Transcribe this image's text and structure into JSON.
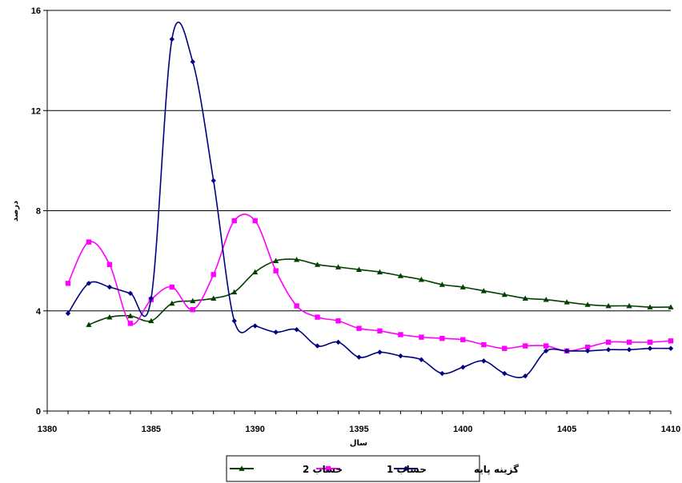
{
  "chart_data": {
    "type": "line",
    "xlabel": "سال",
    "ylabel": "درصد",
    "xlim": [
      1380,
      1410
    ],
    "ylim": [
      0,
      16
    ],
    "xticks": [
      1380,
      1385,
      1390,
      1395,
      1400,
      1405,
      1410
    ],
    "yticks": [
      0,
      4,
      8,
      12,
      16
    ],
    "grid": "horizontal",
    "legend_position": "bottom",
    "series": [
      {
        "name": "گزینه پایه",
        "color": "#000080",
        "marker": "diamond",
        "x": [
          1381,
          1382,
          1383,
          1384,
          1385,
          1386,
          1387,
          1388,
          1389,
          1390,
          1391,
          1392,
          1393,
          1394,
          1395,
          1396,
          1397,
          1398,
          1399,
          1400,
          1401,
          1402,
          1403,
          1404,
          1405,
          1406,
          1407,
          1408,
          1409,
          1410
        ],
        "values": [
          3.9,
          5.1,
          4.95,
          4.7,
          4.5,
          14.85,
          13.95,
          9.2,
          3.6,
          3.4,
          3.15,
          3.25,
          2.6,
          2.75,
          2.15,
          2.35,
          2.2,
          2.05,
          1.5,
          1.75,
          2.0,
          1.5,
          1.4,
          2.4,
          2.4,
          2.4,
          2.45,
          2.45,
          2.5,
          2.5
        ]
      },
      {
        "name": "حساب 1",
        "color": "#ff00ff",
        "marker": "square",
        "x": [
          1381,
          1382,
          1383,
          1384,
          1385,
          1386,
          1387,
          1388,
          1389,
          1390,
          1391,
          1392,
          1393,
          1394,
          1395,
          1396,
          1397,
          1398,
          1399,
          1400,
          1401,
          1402,
          1403,
          1404,
          1405,
          1406,
          1407,
          1408,
          1409,
          1410
        ],
        "values": [
          5.1,
          6.75,
          5.85,
          3.5,
          4.45,
          4.95,
          4.05,
          5.45,
          7.6,
          7.6,
          5.6,
          4.2,
          3.75,
          3.6,
          3.3,
          3.2,
          3.05,
          2.95,
          2.9,
          2.85,
          2.65,
          2.5,
          2.6,
          2.6,
          2.4,
          2.55,
          2.75,
          2.75,
          2.75,
          2.8
        ]
      },
      {
        "name": "حساب 2",
        "color": "#004000",
        "marker": "triangle",
        "x": [
          1382,
          1383,
          1384,
          1385,
          1386,
          1387,
          1388,
          1389,
          1390,
          1391,
          1392,
          1393,
          1394,
          1395,
          1396,
          1397,
          1398,
          1399,
          1400,
          1401,
          1402,
          1403,
          1404,
          1405,
          1406,
          1407,
          1408,
          1409,
          1410
        ],
        "values": [
          3.45,
          3.75,
          3.8,
          3.6,
          4.3,
          4.4,
          4.5,
          4.75,
          5.55,
          6.0,
          6.05,
          5.85,
          5.75,
          5.65,
          5.55,
          5.4,
          5.25,
          5.05,
          4.95,
          4.8,
          4.65,
          4.5,
          4.45,
          4.35,
          4.25,
          4.2,
          4.2,
          4.15,
          4.15
        ]
      }
    ]
  }
}
